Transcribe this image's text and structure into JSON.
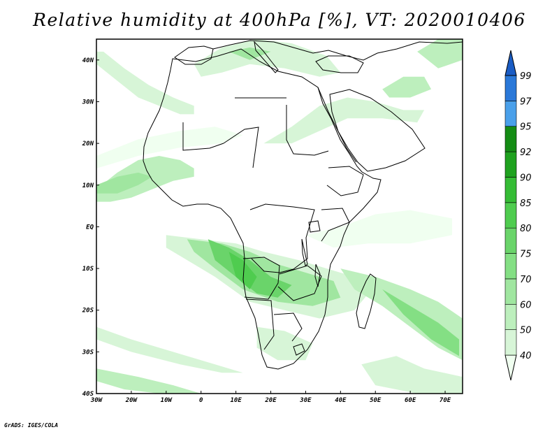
{
  "title": "Relative humidity at 400hPa [%], VT: 2020010406",
  "credit": "GrADS: IGES/COLA",
  "map": {
    "lon_range": [
      -30,
      75
    ],
    "lat_range": [
      -40,
      45
    ],
    "lat_ticks": [
      {
        "value": 40,
        "label": "40N"
      },
      {
        "value": 30,
        "label": "30N"
      },
      {
        "value": 20,
        "label": "20N"
      },
      {
        "value": 10,
        "label": "10N"
      },
      {
        "value": 0,
        "label": "EQ"
      },
      {
        "value": -10,
        "label": "10S"
      },
      {
        "value": -20,
        "label": "20S"
      },
      {
        "value": -30,
        "label": "30S"
      },
      {
        "value": -40,
        "label": "40S"
      }
    ],
    "lon_ticks": [
      {
        "value": -30,
        "label": "30W"
      },
      {
        "value": -20,
        "label": "20W"
      },
      {
        "value": -10,
        "label": "10W"
      },
      {
        "value": 0,
        "label": "0"
      },
      {
        "value": 10,
        "label": "10E"
      },
      {
        "value": 20,
        "label": "20E"
      },
      {
        "value": 30,
        "label": "30E"
      },
      {
        "value": 40,
        "label": "40E"
      },
      {
        "value": 50,
        "label": "50E"
      },
      {
        "value": 60,
        "label": "60E"
      },
      {
        "value": 70,
        "label": "70E"
      }
    ]
  },
  "colorbar": {
    "levels": [
      "40",
      "50",
      "60",
      "70",
      "75",
      "80",
      "85",
      "90",
      "92",
      "95",
      "97",
      "99"
    ],
    "colors": [
      "#f0fff0",
      "#d7f5d7",
      "#bdefbd",
      "#a0e6a0",
      "#84df84",
      "#6ad46a",
      "#4fcc4f",
      "#35bc35",
      "#1fa21f",
      "#148c14",
      "#4aa0ea",
      "#2a78d8",
      "#1a5cc4"
    ]
  },
  "fields": [
    {
      "name": "n-atlantic-band",
      "level": 1,
      "lonlat": [
        [
          -30,
          39
        ],
        [
          -24,
          35
        ],
        [
          -18,
          31
        ],
        [
          -12,
          29
        ],
        [
          -6,
          27
        ],
        [
          -2,
          27
        ],
        [
          -2,
          29
        ],
        [
          -8,
          31
        ],
        [
          -15,
          34
        ],
        [
          -22,
          38
        ],
        [
          -28,
          42
        ],
        [
          -30,
          42
        ]
      ]
    },
    {
      "name": "w-africa-plume",
      "level": 2,
      "lonlat": [
        [
          -30,
          9
        ],
        [
          -24,
          13
        ],
        [
          -18,
          16
        ],
        [
          -12,
          17
        ],
        [
          -6,
          16
        ],
        [
          -2,
          14
        ],
        [
          -2,
          12
        ],
        [
          -8,
          11
        ],
        [
          -14,
          9
        ],
        [
          -20,
          7
        ],
        [
          -26,
          6
        ],
        [
          -30,
          6
        ]
      ]
    },
    {
      "name": "w-africa-core",
      "level": 3,
      "lonlat": [
        [
          -30,
          10
        ],
        [
          -24,
          12
        ],
        [
          -18,
          13
        ],
        [
          -14,
          12
        ],
        [
          -18,
          10
        ],
        [
          -24,
          8
        ],
        [
          -30,
          8
        ]
      ]
    },
    {
      "name": "sahel-band",
      "level": 0,
      "lonlat": [
        [
          -30,
          17
        ],
        [
          -18,
          21
        ],
        [
          -6,
          23
        ],
        [
          4,
          24
        ],
        [
          12,
          22
        ],
        [
          6,
          20
        ],
        [
          -6,
          19
        ],
        [
          -18,
          17
        ],
        [
          -30,
          14
        ]
      ]
    },
    {
      "name": "mediterranean",
      "level": 1,
      "lonlat": [
        [
          -2,
          39
        ],
        [
          6,
          43
        ],
        [
          16,
          45
        ],
        [
          26,
          44
        ],
        [
          36,
          41
        ],
        [
          40,
          37
        ],
        [
          34,
          36
        ],
        [
          24,
          38
        ],
        [
          14,
          39
        ],
        [
          6,
          37
        ],
        [
          0,
          36
        ]
      ]
    },
    {
      "name": "med-core",
      "level": 3,
      "lonlat": [
        [
          8,
          42
        ],
        [
          14,
          43
        ],
        [
          20,
          42
        ],
        [
          14,
          40
        ]
      ]
    },
    {
      "name": "egypt-arabia-band",
      "level": 1,
      "lonlat": [
        [
          18,
          20
        ],
        [
          26,
          24
        ],
        [
          34,
          29
        ],
        [
          42,
          31
        ],
        [
          50,
          30
        ],
        [
          58,
          28
        ],
        [
          64,
          28
        ],
        [
          62,
          25
        ],
        [
          52,
          26
        ],
        [
          42,
          26
        ],
        [
          34,
          23
        ],
        [
          26,
          20
        ]
      ]
    },
    {
      "name": "iran-area",
      "level": 2,
      "lonlat": [
        [
          52,
          33
        ],
        [
          58,
          36
        ],
        [
          64,
          36
        ],
        [
          66,
          33
        ],
        [
          60,
          31
        ],
        [
          54,
          31
        ]
      ]
    },
    {
      "name": "caspian-area",
      "level": 2,
      "lonlat": [
        [
          62,
          42
        ],
        [
          68,
          45
        ],
        [
          75,
          45
        ],
        [
          75,
          40
        ],
        [
          68,
          38
        ]
      ]
    },
    {
      "name": "east-africa-band",
      "level": 0,
      "lonlat": [
        [
          30,
          -2
        ],
        [
          40,
          0
        ],
        [
          50,
          3
        ],
        [
          60,
          4
        ],
        [
          72,
          2
        ],
        [
          72,
          -2
        ],
        [
          60,
          -4
        ],
        [
          48,
          -4
        ],
        [
          38,
          -5
        ]
      ]
    },
    {
      "name": "central-africa-outer",
      "level": 1,
      "lonlat": [
        [
          -10,
          -2
        ],
        [
          0,
          -3
        ],
        [
          10,
          -4
        ],
        [
          18,
          -6
        ],
        [
          28,
          -8
        ],
        [
          36,
          -10
        ],
        [
          44,
          -12
        ],
        [
          48,
          -16
        ],
        [
          44,
          -20
        ],
        [
          34,
          -22
        ],
        [
          24,
          -20
        ],
        [
          14,
          -18
        ],
        [
          4,
          -12
        ],
        [
          -4,
          -8
        ],
        [
          -10,
          -5
        ]
      ]
    },
    {
      "name": "central-africa-mid",
      "level": 3,
      "lonlat": [
        [
          -4,
          -3
        ],
        [
          6,
          -4
        ],
        [
          14,
          -6
        ],
        [
          22,
          -9
        ],
        [
          30,
          -11
        ],
        [
          38,
          -13
        ],
        [
          40,
          -17
        ],
        [
          32,
          -19
        ],
        [
          22,
          -18
        ],
        [
          12,
          -15
        ],
        [
          4,
          -10
        ],
        [
          -2,
          -6
        ]
      ]
    },
    {
      "name": "central-africa-core",
      "level": 5,
      "lonlat": [
        [
          2,
          -3
        ],
        [
          8,
          -5
        ],
        [
          14,
          -8
        ],
        [
          20,
          -12
        ],
        [
          26,
          -14
        ],
        [
          22,
          -17
        ],
        [
          16,
          -16
        ],
        [
          10,
          -12
        ],
        [
          4,
          -8
        ]
      ]
    },
    {
      "name": "angola-core",
      "level": 6,
      "lonlat": [
        [
          8,
          -6
        ],
        [
          12,
          -8
        ],
        [
          16,
          -12
        ],
        [
          14,
          -15
        ],
        [
          10,
          -12
        ]
      ]
    },
    {
      "name": "madagascar-band",
      "level": 2,
      "lonlat": [
        [
          40,
          -10
        ],
        [
          50,
          -12
        ],
        [
          60,
          -15
        ],
        [
          68,
          -18
        ],
        [
          75,
          -22
        ],
        [
          75,
          -32
        ],
        [
          68,
          -29
        ],
        [
          60,
          -24
        ],
        [
          52,
          -19
        ],
        [
          44,
          -15
        ]
      ]
    },
    {
      "name": "madagascar-core",
      "level": 4,
      "lonlat": [
        [
          52,
          -15
        ],
        [
          60,
          -19
        ],
        [
          68,
          -23
        ],
        [
          74,
          -27
        ],
        [
          74,
          -31
        ],
        [
          66,
          -27
        ],
        [
          58,
          -21
        ]
      ]
    },
    {
      "name": "s-atlantic-band",
      "level": 1,
      "lonlat": [
        [
          -30,
          -27
        ],
        [
          -20,
          -30
        ],
        [
          -6,
          -33
        ],
        [
          6,
          -35
        ],
        [
          12,
          -35
        ],
        [
          4,
          -33
        ],
        [
          -8,
          -30
        ],
        [
          -20,
          -27
        ],
        [
          -30,
          -24
        ]
      ]
    },
    {
      "name": "southern-band",
      "level": 2,
      "lonlat": [
        [
          -30,
          -37
        ],
        [
          -22,
          -39
        ],
        [
          -12,
          -40
        ],
        [
          0,
          -40
        ],
        [
          -8,
          -38
        ],
        [
          -18,
          -36
        ],
        [
          -30,
          -34
        ]
      ]
    },
    {
      "name": "south-africa-area",
      "level": 1,
      "lonlat": [
        [
          16,
          -24
        ],
        [
          24,
          -25
        ],
        [
          32,
          -28
        ],
        [
          30,
          -32
        ],
        [
          22,
          -32
        ],
        [
          16,
          -29
        ]
      ]
    },
    {
      "name": "indian-ocean-south",
      "level": 1,
      "lonlat": [
        [
          46,
          -33
        ],
        [
          56,
          -31
        ],
        [
          64,
          -34
        ],
        [
          75,
          -36
        ],
        [
          75,
          -40
        ],
        [
          62,
          -40
        ],
        [
          50,
          -38
        ]
      ]
    }
  ]
}
